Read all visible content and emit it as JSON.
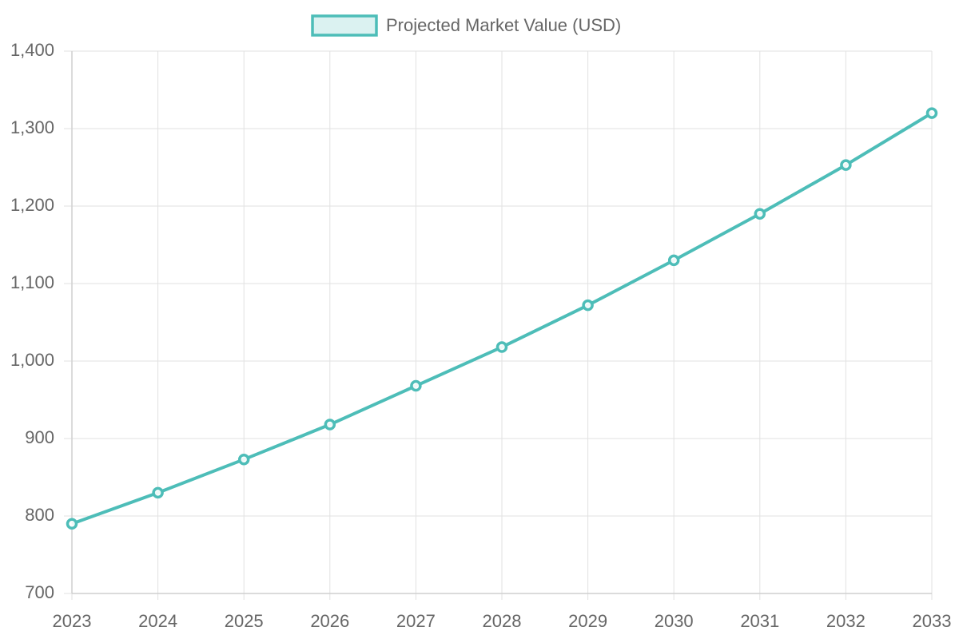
{
  "chart_data": {
    "type": "line",
    "categories": [
      "2023",
      "2024",
      "2025",
      "2026",
      "2027",
      "2028",
      "2029",
      "2030",
      "2031",
      "2032",
      "2033"
    ],
    "series": [
      {
        "name": "Projected Market Value (USD)",
        "color": "#4dbdb8",
        "values": [
          790,
          830,
          873,
          918,
          968,
          1018,
          1072,
          1130,
          1190,
          1253,
          1320
        ]
      }
    ],
    "ylim": [
      700,
      1400
    ],
    "yticks": [
      700,
      800,
      900,
      {
        "value": 1000,
        "label": "1,000"
      },
      {
        "value": 1100,
        "label": "1,100"
      },
      {
        "value": 1200,
        "label": "1,200"
      },
      {
        "value": 1300,
        "label": "1,300"
      },
      {
        "value": 1400,
        "label": "1,400"
      }
    ],
    "grid": true,
    "legend": "top"
  }
}
